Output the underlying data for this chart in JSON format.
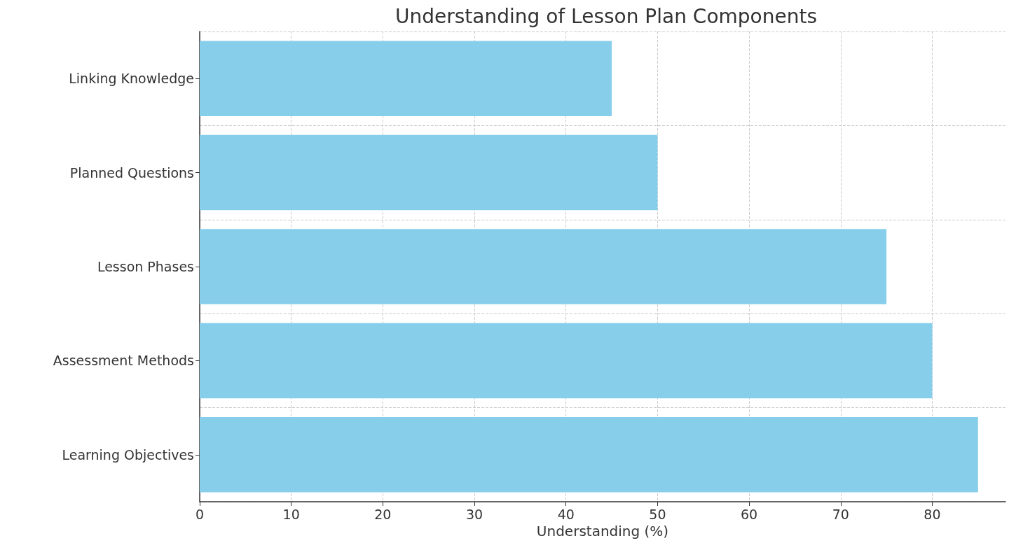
{
  "chart_data": {
    "type": "bar",
    "orientation": "horizontal",
    "title": "Understanding of Lesson Plan Components",
    "xlabel": "Understanding (%)",
    "categories": [
      "Linking Knowledge",
      "Planned Questions",
      "Lesson Phases",
      "Assessment Methods",
      "Learning Objectives"
    ],
    "values": [
      45,
      50,
      75,
      80,
      85
    ],
    "color": "#87ceeb",
    "xlim": [
      0,
      88
    ],
    "xticks": [
      0,
      10,
      20,
      30,
      40,
      50,
      60,
      70,
      80
    ],
    "grid": true
  }
}
